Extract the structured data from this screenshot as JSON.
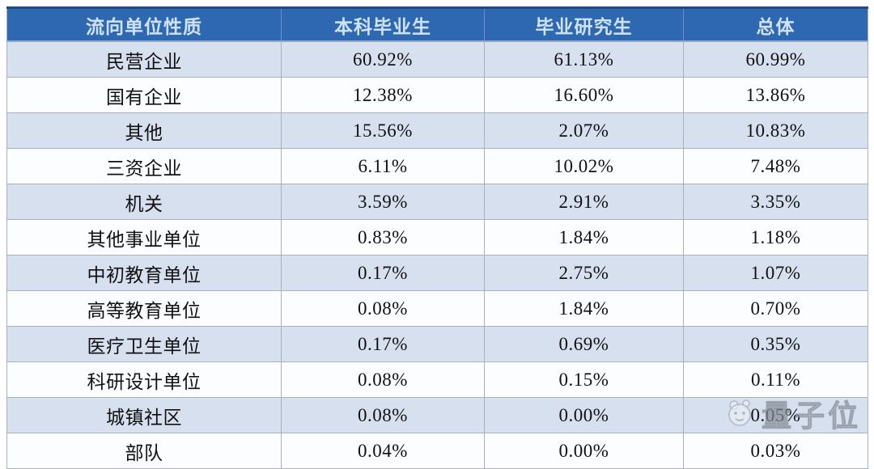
{
  "chart_data": {
    "type": "table",
    "columns": [
      "流向单位性质",
      "本科毕业生",
      "毕业研究生",
      "总体"
    ],
    "rows": [
      {
        "label": "民营企业",
        "values": [
          "60.92%",
          "61.13%",
          "60.99%"
        ]
      },
      {
        "label": "国有企业",
        "values": [
          "12.38%",
          "16.60%",
          "13.86%"
        ]
      },
      {
        "label": "其他",
        "values": [
          "15.56%",
          "2.07%",
          "10.83%"
        ]
      },
      {
        "label": "三资企业",
        "values": [
          "6.11%",
          "10.02%",
          "7.48%"
        ]
      },
      {
        "label": "机关",
        "values": [
          "3.59%",
          "2.91%",
          "3.35%"
        ]
      },
      {
        "label": "其他事业单位",
        "values": [
          "0.83%",
          "1.84%",
          "1.18%"
        ]
      },
      {
        "label": "中初教育单位",
        "values": [
          "0.17%",
          "2.75%",
          "1.07%"
        ]
      },
      {
        "label": "高等教育单位",
        "values": [
          "0.08%",
          "1.84%",
          "0.70%"
        ]
      },
      {
        "label": "医疗卫生单位",
        "values": [
          "0.17%",
          "0.69%",
          "0.35%"
        ]
      },
      {
        "label": "科研设计单位",
        "values": [
          "0.08%",
          "0.15%",
          "0.11%"
        ]
      },
      {
        "label": "城镇社区",
        "values": [
          "0.08%",
          "0.00%",
          "0.05%"
        ]
      },
      {
        "label": "部队",
        "values": [
          "0.04%",
          "0.00%",
          "0.03%"
        ]
      }
    ],
    "layout": {
      "grid": true,
      "alternating_rows": true,
      "first_data_row_shaded": true
    }
  },
  "watermark": {
    "text": "量子位"
  },
  "colors": {
    "header-bg": "#2e68b1",
    "header-text": "#cfe2f7",
    "row-alt-bg": "#d7e0ef",
    "row-bg": "#fcfdff",
    "border": "#a8b0bf",
    "accent-top": "#224a85",
    "text": "#111111",
    "watermark": "#969daa"
  }
}
